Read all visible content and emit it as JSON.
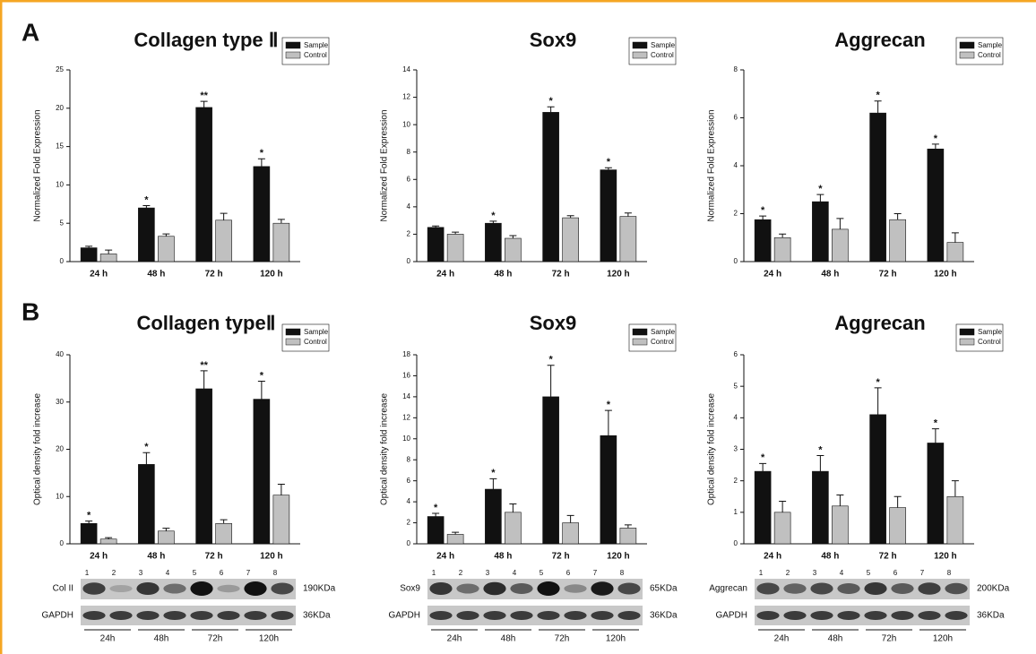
{
  "panels": [
    "A",
    "B"
  ],
  "chart_data": [
    {
      "type": "bar",
      "title": "Collagen type Ⅱ",
      "y_label": "Normalized Fold Expression",
      "categories": [
        "24 h",
        "48 h",
        "72 h",
        "120 h"
      ],
      "series": [
        {
          "name": "Sample",
          "color": "#111111",
          "values": [
            1.8,
            7.0,
            20.1,
            12.4
          ],
          "errors": [
            0.2,
            0.3,
            0.8,
            1.0
          ],
          "annotations": [
            null,
            "*",
            "**",
            "*"
          ]
        },
        {
          "name": "Control",
          "color": "#c0c0c0",
          "values": [
            1.0,
            3.3,
            5.4,
            5.0
          ],
          "errors": [
            0.5,
            0.3,
            0.9,
            0.5
          ]
        }
      ],
      "ylim": [
        0,
        25
      ],
      "yticks": [
        0,
        5,
        10,
        15,
        20,
        25
      ],
      "legend": "upper right"
    },
    {
      "type": "bar",
      "title": "Sox9",
      "y_label": "Normalized Fold Expression",
      "categories": [
        "24 h",
        "48 h",
        "72 h",
        "120 h"
      ],
      "series": [
        {
          "name": "Sample",
          "color": "#111111",
          "values": [
            2.5,
            2.8,
            10.9,
            6.7
          ],
          "errors": [
            0.1,
            0.15,
            0.4,
            0.15
          ],
          "annotations": [
            null,
            "*",
            "*",
            "*"
          ]
        },
        {
          "name": "Control",
          "color": "#c0c0c0",
          "values": [
            2.0,
            1.7,
            3.2,
            3.3
          ],
          "errors": [
            0.15,
            0.2,
            0.15,
            0.25
          ]
        }
      ],
      "ylim": [
        0,
        14
      ],
      "yticks": [
        0,
        2,
        4,
        6,
        8,
        10,
        12,
        14
      ],
      "legend": "upper right"
    },
    {
      "type": "bar",
      "title": "Aggrecan",
      "y_label": "Normalized Fold Expression",
      "categories": [
        "24 h",
        "48 h",
        "72 h",
        "120 h"
      ],
      "series": [
        {
          "name": "Sample",
          "color": "#111111",
          "values": [
            1.75,
            2.5,
            6.2,
            4.7
          ],
          "errors": [
            0.15,
            0.3,
            0.5,
            0.2
          ],
          "annotations": [
            "*",
            "*",
            "*",
            "*"
          ]
        },
        {
          "name": "Control",
          "color": "#c0c0c0",
          "values": [
            1.0,
            1.35,
            1.75,
            0.8
          ],
          "errors": [
            0.15,
            0.45,
            0.25,
            0.4
          ]
        }
      ],
      "ylim": [
        0,
        8
      ],
      "yticks": [
        0,
        2,
        4,
        6,
        8
      ],
      "legend": "upper right"
    },
    {
      "type": "bar",
      "title": "Collagen typeⅡ",
      "y_label": "Optical density fold increase",
      "categories": [
        "24 h",
        "48 h",
        "72 h",
        "120 h"
      ],
      "series": [
        {
          "name": "Sample",
          "color": "#111111",
          "values": [
            4.3,
            16.8,
            32.8,
            30.6
          ],
          "errors": [
            0.5,
            2.5,
            3.8,
            3.8
          ],
          "annotations": [
            "*",
            "*",
            "**",
            "*"
          ]
        },
        {
          "name": "Control",
          "color": "#c0c0c0",
          "values": [
            1.0,
            2.7,
            4.3,
            10.3
          ],
          "errors": [
            0.3,
            0.6,
            0.8,
            2.3
          ]
        }
      ],
      "ylim": [
        0,
        40
      ],
      "yticks": [
        0,
        10,
        20,
        30,
        40
      ],
      "legend": "upper right"
    },
    {
      "type": "bar",
      "title": "Sox9",
      "y_label": "Optical density fold increase",
      "categories": [
        "24 h",
        "48 h",
        "72 h",
        "120 h"
      ],
      "series": [
        {
          "name": "Sample",
          "color": "#111111",
          "values": [
            2.6,
            5.2,
            14.0,
            10.3
          ],
          "errors": [
            0.3,
            1.0,
            3.0,
            2.4
          ],
          "annotations": [
            "*",
            "*",
            "*",
            "*"
          ]
        },
        {
          "name": "Control",
          "color": "#c0c0c0",
          "values": [
            0.9,
            3.0,
            2.0,
            1.5
          ],
          "errors": [
            0.2,
            0.8,
            0.7,
            0.3
          ]
        }
      ],
      "ylim": [
        0,
        18
      ],
      "yticks": [
        0,
        2,
        4,
        6,
        8,
        10,
        12,
        14,
        16,
        18
      ],
      "legend": "upper right"
    },
    {
      "type": "bar",
      "title": "Aggrecan",
      "y_label": "Optical density fold increase",
      "categories": [
        "24 h",
        "48 h",
        "72 h",
        "120 h"
      ],
      "series": [
        {
          "name": "Sample",
          "color": "#111111",
          "values": [
            2.3,
            2.3,
            4.1,
            3.2
          ],
          "errors": [
            0.25,
            0.5,
            0.85,
            0.45
          ],
          "annotations": [
            "*",
            "*",
            "*",
            "*"
          ]
        },
        {
          "name": "Control",
          "color": "#c0c0c0",
          "values": [
            1.0,
            1.2,
            1.15,
            1.5
          ],
          "errors": [
            0.35,
            0.35,
            0.35,
            0.5
          ]
        }
      ],
      "ylim": [
        0,
        6
      ],
      "yticks": [
        0,
        1,
        2,
        3,
        4,
        5,
        6
      ],
      "legend": "upper right"
    }
  ],
  "blots": [
    {
      "label": "Col II",
      "size": "190KDa",
      "control": "GAPDH",
      "control_size": "36KDa",
      "lanes": [
        "1",
        "2",
        "3",
        "4",
        "5",
        "6",
        "7",
        "8"
      ],
      "times": [
        "24h",
        "48h",
        "72h",
        "120h"
      ]
    },
    {
      "label": "Sox9",
      "size": "65KDa",
      "control": "GAPDH",
      "control_size": "36KDa",
      "lanes": [
        "1",
        "2",
        "3",
        "4",
        "5",
        "6",
        "7",
        "8"
      ],
      "times": [
        "24h",
        "48h",
        "72h",
        "120h"
      ]
    },
    {
      "label": "Aggrecan",
      "size": "200KDa",
      "control": "GAPDH",
      "control_size": "36KDa",
      "lanes": [
        "1",
        "2",
        "3",
        "4",
        "5",
        "6",
        "7",
        "8"
      ],
      "times": [
        "24h",
        "48h",
        "72h",
        "120h"
      ]
    }
  ]
}
